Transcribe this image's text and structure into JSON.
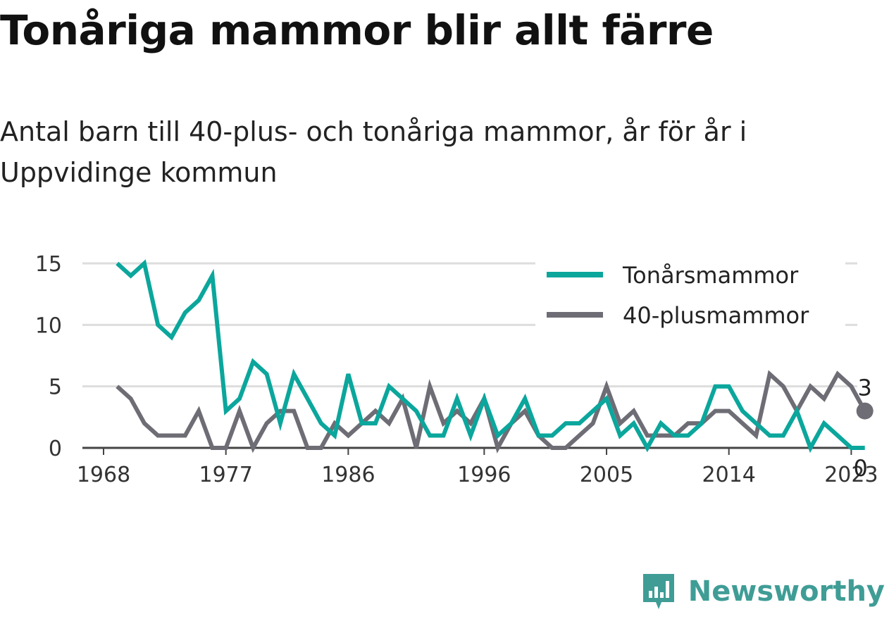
{
  "chart_data": {
    "type": "line",
    "title": "Tonåriga mammor blir allt färre",
    "subtitle": "Antal barn till 40-plus- och tonåriga mammor, år för år i Uppvidinge kommun",
    "x": [
      1969,
      1970,
      1971,
      1972,
      1973,
      1974,
      1975,
      1976,
      1977,
      1978,
      1979,
      1980,
      1981,
      1982,
      1983,
      1984,
      1985,
      1986,
      1987,
      1988,
      1989,
      1990,
      1991,
      1992,
      1993,
      1994,
      1995,
      1996,
      1997,
      1998,
      1999,
      2000,
      2001,
      2002,
      2003,
      2004,
      2005,
      2006,
      2007,
      2008,
      2009,
      2010,
      2011,
      2012,
      2013,
      2014,
      2015,
      2016,
      2017,
      2018,
      2019,
      2020,
      2021,
      2022,
      2023,
      2024
    ],
    "series": [
      {
        "name": "Tonårsmammor",
        "color": "#0ba69c",
        "values": [
          15,
          14,
          15,
          10,
          9,
          11,
          12,
          14,
          3,
          4,
          7,
          6,
          2,
          6,
          4,
          2,
          1,
          6,
          2,
          2,
          5,
          4,
          3,
          1,
          1,
          4,
          1,
          4,
          1,
          2,
          4,
          1,
          1,
          2,
          2,
          3,
          4,
          1,
          2,
          0,
          2,
          1,
          1,
          2,
          5,
          5,
          3,
          2,
          1,
          1,
          3,
          0,
          2,
          1,
          0,
          0
        ]
      },
      {
        "name": "40-plusmammor",
        "color": "#6e6d75",
        "values": [
          5,
          4,
          2,
          1,
          1,
          1,
          3,
          0,
          0,
          3,
          0,
          2,
          3,
          3,
          0,
          0,
          2,
          1,
          2,
          3,
          2,
          4,
          0,
          5,
          2,
          3,
          2,
          4,
          0,
          2,
          3,
          1,
          0,
          0,
          1,
          2,
          5,
          2,
          3,
          1,
          1,
          1,
          2,
          2,
          3,
          3,
          2,
          1,
          6,
          5,
          3,
          5,
          4,
          6,
          5,
          3
        ]
      }
    ],
    "x_ticks": [
      1968,
      1977,
      1986,
      1996,
      2005,
      2014,
      2023
    ],
    "y_ticks": [
      0,
      5,
      10,
      15
    ],
    "ylim": [
      0,
      15
    ],
    "xlim": [
      1968,
      2025
    ],
    "end_labels": [
      {
        "series": "40-plusmammor",
        "text": "3"
      },
      {
        "series": "Tonårsmammor",
        "text": "0"
      }
    ],
    "legend": "top-right",
    "grid": "horizontal"
  },
  "brand": {
    "name": "Newsworthy",
    "color": "#3f9d96"
  }
}
